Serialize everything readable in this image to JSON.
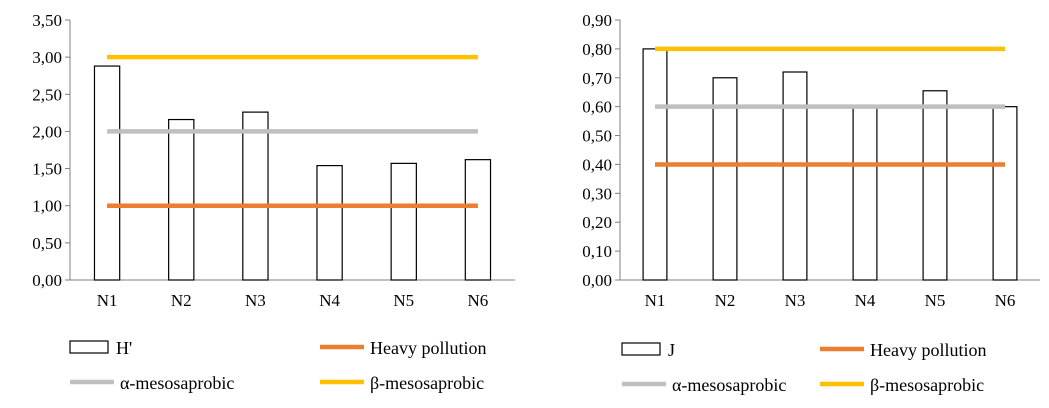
{
  "colors": {
    "bar_fill": "#ffffff",
    "bar_stroke": "#000000",
    "heavy_pollution": "#ED7D31",
    "alpha_mesosaprobic": "#BFBFBF",
    "beta_mesosaprobic": "#FFC000"
  },
  "chart_data": [
    {
      "type": "bar",
      "title": "",
      "xlabel": "",
      "ylabel": "",
      "categories": [
        "N1",
        "N2",
        "N3",
        "N4",
        "N5",
        "N6"
      ],
      "series": [
        {
          "name": "H'",
          "values": [
            2.88,
            2.16,
            2.26,
            1.54,
            1.57,
            1.62
          ]
        }
      ],
      "reference_lines": [
        {
          "name": "Heavy pollution",
          "value": 1.0,
          "color": "#ED7D31"
        },
        {
          "name": "α-mesosaprobic",
          "value": 2.0,
          "color": "#BFBFBF"
        },
        {
          "name": "β-mesosaprobic",
          "value": 3.0,
          "color": "#FFC000"
        }
      ],
      "ylim": [
        0,
        3.5
      ],
      "yticks": [
        "0,00",
        "0,50",
        "1,00",
        "1,50",
        "2,00",
        "2,50",
        "3,00",
        "3,50"
      ],
      "grid": false,
      "legend_position": "bottom"
    },
    {
      "type": "bar",
      "title": "",
      "xlabel": "",
      "ylabel": "",
      "categories": [
        "N1",
        "N2",
        "N3",
        "N4",
        "N5",
        "N6"
      ],
      "series": [
        {
          "name": "J",
          "values": [
            0.8,
            0.7,
            0.72,
            0.6,
            0.655,
            0.6
          ]
        }
      ],
      "reference_lines": [
        {
          "name": "Heavy pollution",
          "value": 0.4,
          "color": "#ED7D31"
        },
        {
          "name": "α-mesosaprobic",
          "value": 0.6,
          "color": "#BFBFBF"
        },
        {
          "name": "β-mesosaprobic",
          "value": 0.8,
          "color": "#FFC000"
        }
      ],
      "ylim": [
        0,
        0.9
      ],
      "yticks": [
        "0,00",
        "0,10",
        "0,20",
        "0,30",
        "0,40",
        "0,50",
        "0,60",
        "0,70",
        "0,80",
        "0,90"
      ],
      "grid": false,
      "legend_position": "bottom"
    }
  ]
}
